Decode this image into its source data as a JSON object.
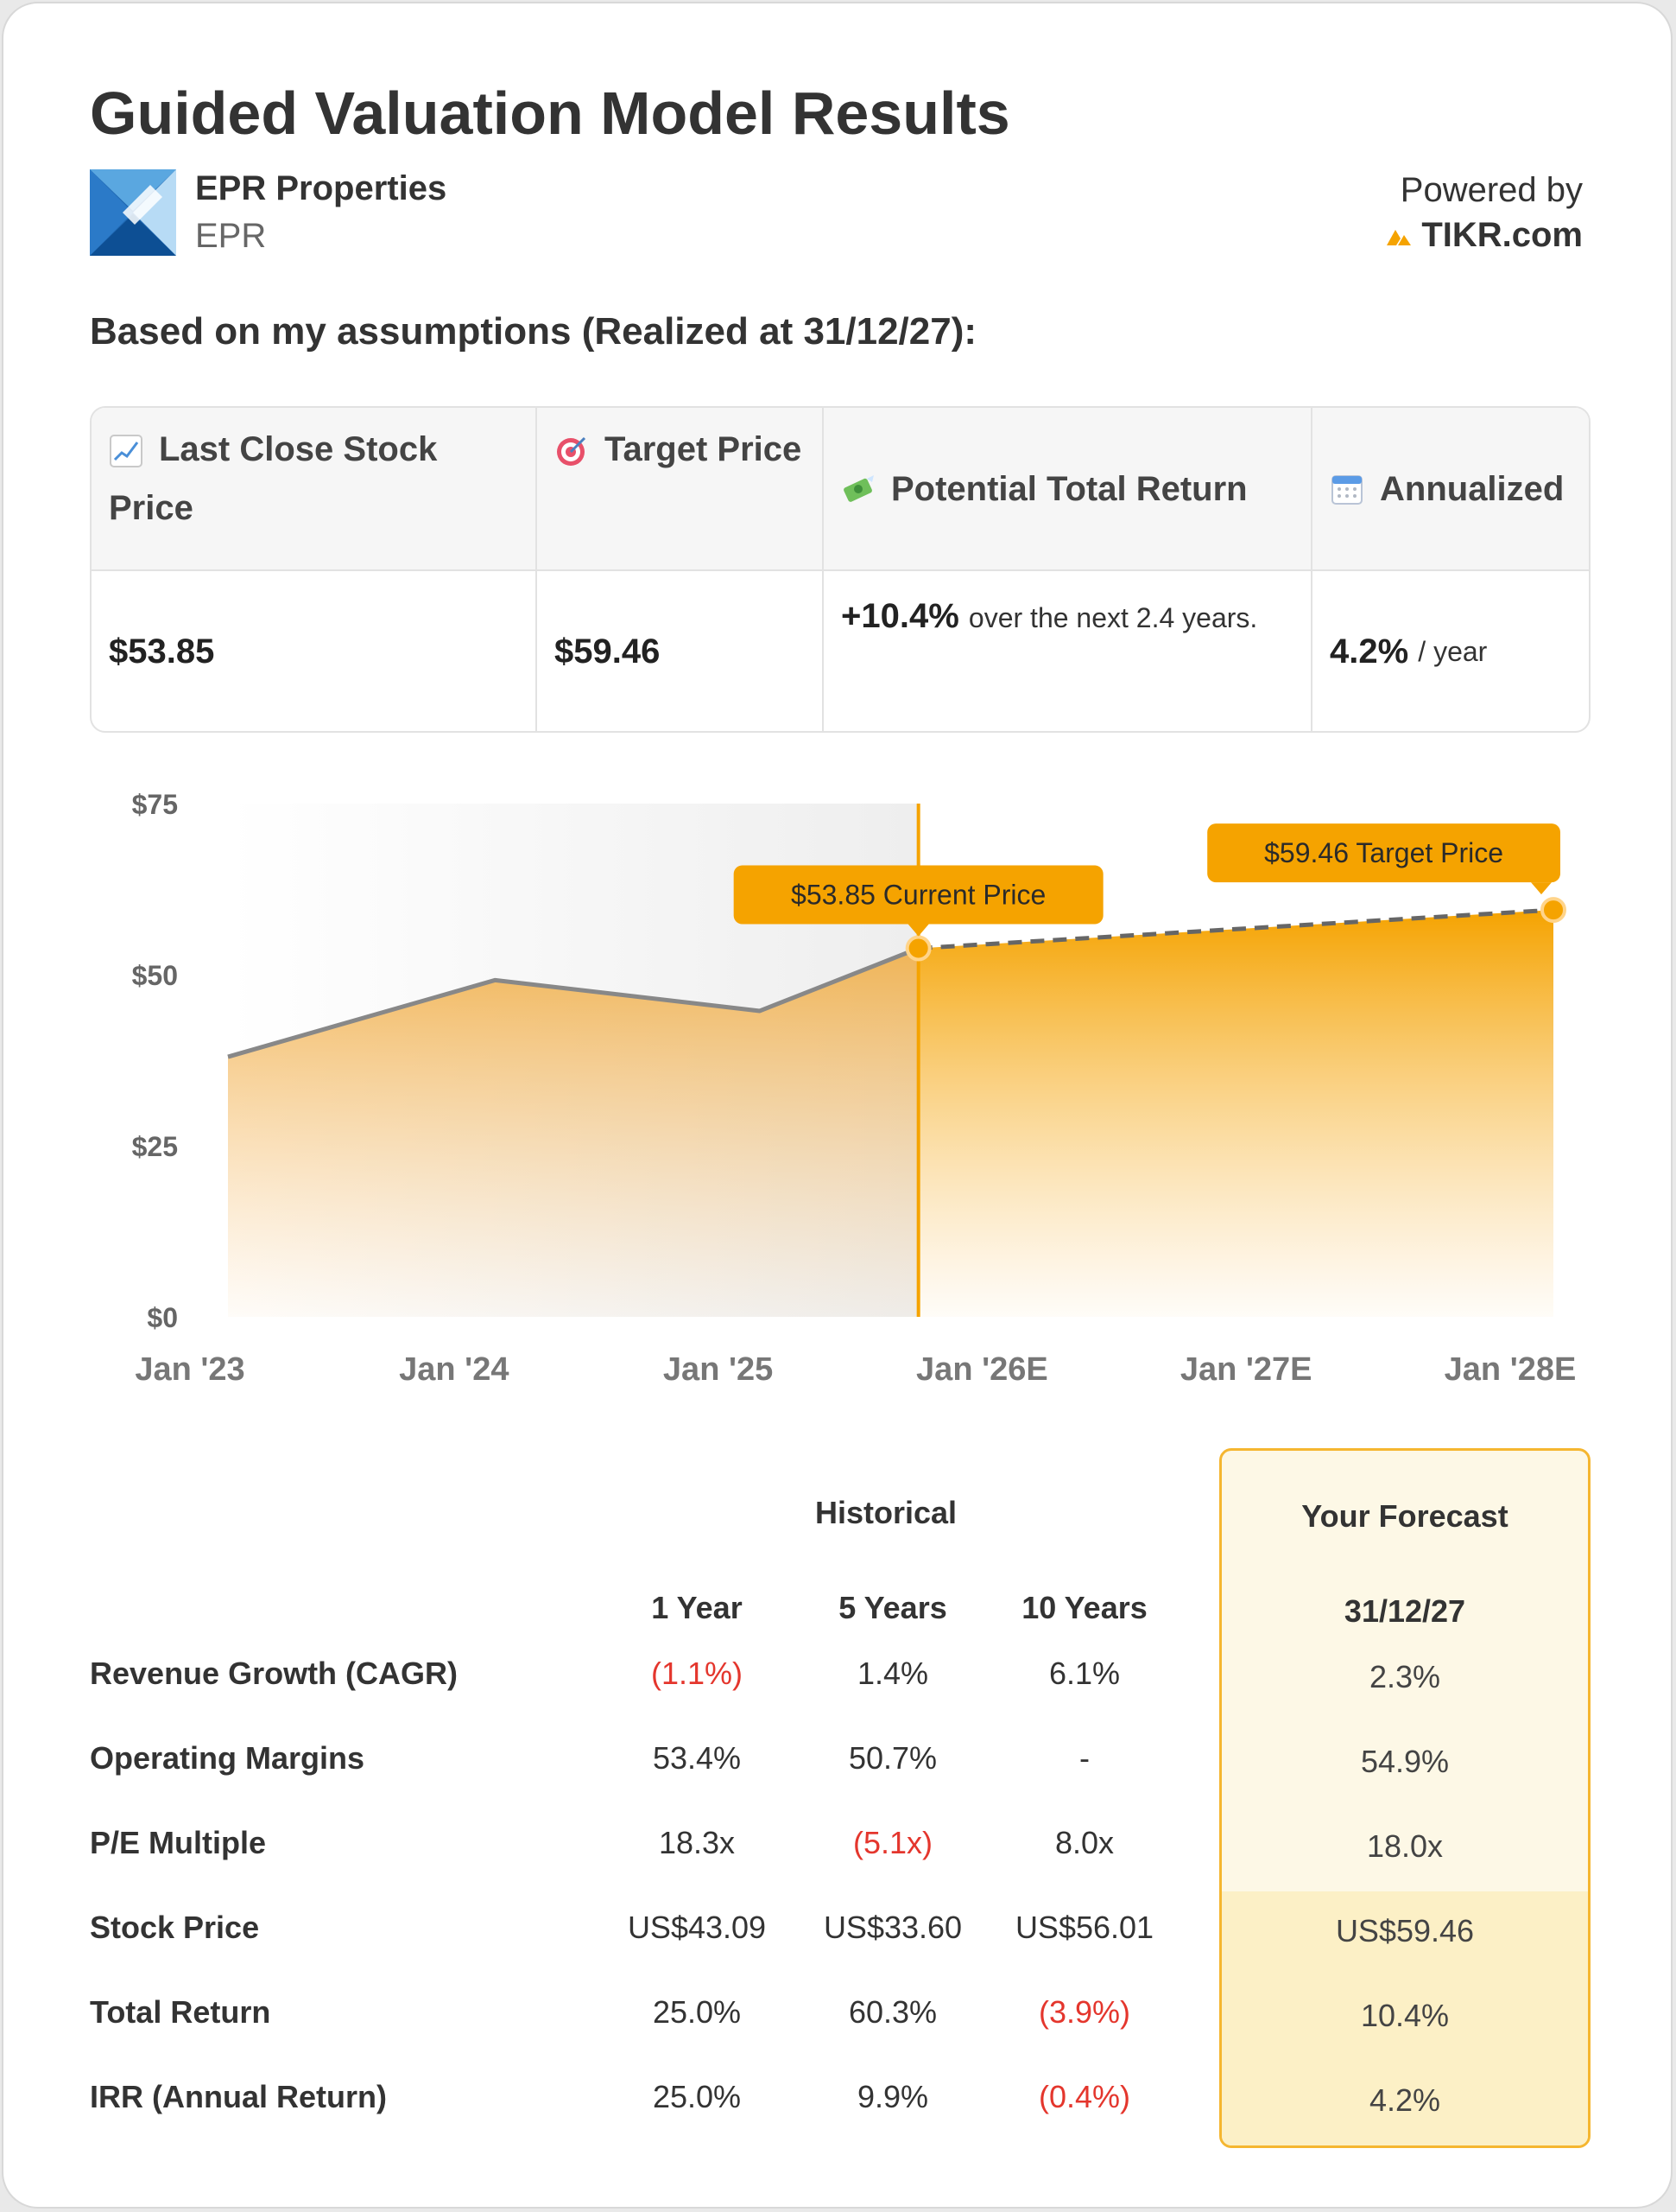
{
  "header": {
    "title": "Guided Valuation Model Results",
    "company_name": "EPR Properties",
    "ticker": "EPR",
    "powered_by": "Powered by",
    "brand": "TIKR.com"
  },
  "subtitle": "Based on my assumptions (Realized at 31/12/27):",
  "summary": {
    "headers": [
      "Last Close Stock Price",
      "Target Price",
      "Potential Total Return",
      "Annualized"
    ],
    "icons": [
      "chart-increasing-icon",
      "target-icon",
      "money-with-wings-icon",
      "calendar-icon"
    ],
    "last_close": "$53.85",
    "target_price": "$59.46",
    "total_return": "+10.4%",
    "total_return_suffix": "over the next 2.4 years.",
    "annualized": "4.2%",
    "annualized_suffix": "/ year"
  },
  "chart_data": {
    "type": "area",
    "x_ticks": [
      "Jan '23",
      "Jan '24",
      "Jan '25",
      "Jan '26E",
      "Jan '27E",
      "Jan '28E"
    ],
    "y_ticks": [
      "$0",
      "$25",
      "$50",
      "$75"
    ],
    "ylim": [
      0,
      75
    ],
    "xlim": [
      2022.99,
      2028.0
    ],
    "historical": [
      {
        "x": 2022.99,
        "y": 38.0
      },
      {
        "x": 2024.0,
        "y": 49.2
      },
      {
        "x": 2025.0,
        "y": 44.7
      },
      {
        "x": 2025.6,
        "y": 53.85
      }
    ],
    "forecast": [
      {
        "x": 2025.6,
        "y": 53.85
      },
      {
        "x": 2028.0,
        "y": 59.46
      }
    ],
    "current_label": "$53.85 Current Price",
    "target_label": "$59.46 Target Price",
    "colors": {
      "accent": "#f5a300",
      "historical_line": "#888888",
      "forecast_line": "#666666"
    }
  },
  "table": {
    "historical_label": "Historical",
    "forecast_label": "Your Forecast",
    "columns": [
      "1 Year",
      "5 Years",
      "10 Years"
    ],
    "forecast_date": "31/12/27",
    "rows": [
      {
        "label": "Revenue Growth (CAGR)",
        "v1": "(1.1%)",
        "v5": "1.4%",
        "v10": "6.1%",
        "fc": "2.3%"
      },
      {
        "label": "Operating Margins",
        "v1": "53.4%",
        "v5": "50.7%",
        "v10": "-",
        "fc": "54.9%"
      },
      {
        "label": "P/E Multiple",
        "v1": "18.3x",
        "v5": "(5.1x)",
        "v10": "8.0x",
        "fc": "18.0x"
      },
      {
        "label": "Stock Price",
        "v1": "US$43.09",
        "v5": "US$33.60",
        "v10": "US$56.01",
        "fc": "US$59.46"
      },
      {
        "label": "Total Return",
        "v1": "25.0%",
        "v5": "60.3%",
        "v10": "(3.9%)",
        "fc": "10.4%"
      },
      {
        "label": "IRR (Annual Return)",
        "v1": "25.0%",
        "v5": "9.9%",
        "v10": "(0.4%)",
        "fc": "4.2%"
      }
    ]
  }
}
